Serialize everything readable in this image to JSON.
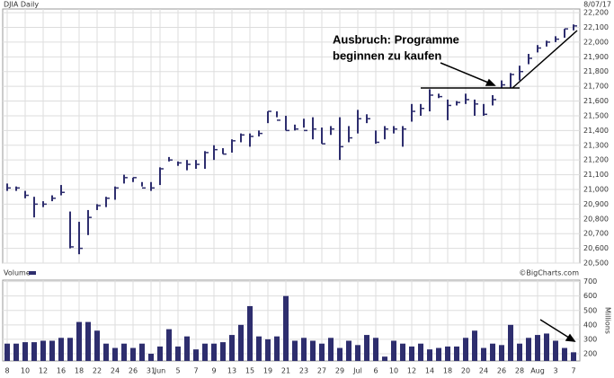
{
  "chart_data": [
    {
      "type": "ohlc",
      "title": "DJIA Daily",
      "date": "8/07/17",
      "annotation": [
        "Ausbruch: Programme",
        "beginnen zu kaufen"
      ],
      "color": "#2e2e6e",
      "grid": true,
      "high": [
        21040,
        21020,
        20990,
        20950,
        20920,
        20960,
        21030,
        20850,
        20780,
        20860,
        20900,
        20950,
        21020,
        21100,
        21080,
        21050,
        21050,
        21150,
        21220,
        21190,
        21200,
        21200,
        21260,
        21300,
        21280,
        21340,
        21380,
        21380,
        21400,
        21530,
        21530,
        21500,
        21440,
        21480,
        21490,
        21420,
        21430,
        21490,
        21430,
        21540,
        21510,
        21400,
        21430,
        21430,
        21430,
        21580,
        21580,
        21680,
        21650,
        21610,
        21600,
        21650,
        21610,
        21580,
        21640,
        21740,
        21790,
        21840,
        21920,
        21980,
        22010,
        22040,
        22090,
        22120
      ],
      "low": [
        20990,
        20990,
        20940,
        20810,
        20880,
        20920,
        20960,
        20600,
        20560,
        20690,
        20860,
        20880,
        20930,
        21040,
        21050,
        21020,
        20990,
        21030,
        21190,
        21160,
        21130,
        21140,
        21140,
        21200,
        21240,
        21250,
        21320,
        21290,
        21360,
        21450,
        21490,
        21400,
        21400,
        21420,
        21340,
        21310,
        21370,
        21200,
        21320,
        21380,
        21450,
        21310,
        21340,
        21380,
        21290,
        21460,
        21500,
        21530,
        21620,
        21470,
        21570,
        21580,
        21500,
        21500,
        21570,
        21690,
        21690,
        21740,
        21850,
        21930,
        21970,
        22000,
        22030,
        22080
      ],
      "close": [
        21010,
        21010,
        20960,
        20900,
        20900,
        20940,
        20980,
        20610,
        20600,
        20810,
        20890,
        20940,
        21010,
        21080,
        21080,
        21010,
        21010,
        21140,
        21200,
        21180,
        21170,
        21170,
        21250,
        21270,
        21240,
        21330,
        21370,
        21360,
        21380,
        21530,
        21470,
        21400,
        21410,
        21400,
        21410,
        21310,
        21410,
        21290,
        21350,
        21480,
        21480,
        21320,
        21410,
        21410,
        21410,
        21530,
        21550,
        21640,
        21630,
        21570,
        21590,
        21610,
        21580,
        21510,
        21610,
        21710,
        21780,
        21800,
        21890,
        21960,
        22000,
        22020,
        22090,
        22110
      ],
      "ylim": [
        20500,
        22225
      ],
      "yticks": [
        {
          "value": 20500,
          "label": "20,500"
        },
        {
          "value": 20600,
          "label": "20,600"
        },
        {
          "value": 20700,
          "label": "20,700"
        },
        {
          "value": 20800,
          "label": "20,800"
        },
        {
          "value": 20900,
          "label": "20,900"
        },
        {
          "value": 21000,
          "label": "21,000"
        },
        {
          "value": 21100,
          "label": "21,100"
        },
        {
          "value": 21200,
          "label": "21,200"
        },
        {
          "value": 21300,
          "label": "21,300"
        },
        {
          "value": 21400,
          "label": "21,400"
        },
        {
          "value": 21500,
          "label": "21,500"
        },
        {
          "value": 21600,
          "label": "21,600"
        },
        {
          "value": 21700,
          "label": "21,700"
        },
        {
          "value": 21800,
          "label": "21,800"
        },
        {
          "value": 21900,
          "label": "21,900"
        },
        {
          "value": 22000,
          "label": "22,000"
        },
        {
          "value": 22100,
          "label": "22,100"
        },
        {
          "value": 22200,
          "label": "22,200"
        }
      ]
    },
    {
      "type": "bar",
      "title": "Volume",
      "source": "©BigCharts.com",
      "y_label": "Millions",
      "color": "#2e2e6e",
      "grid": true,
      "categories": [
        "8",
        null,
        "10",
        null,
        "12",
        null,
        "16",
        null,
        "18",
        null,
        "22",
        null,
        "24",
        null,
        "26",
        null,
        "31",
        "Jun",
        null,
        "5",
        null,
        "7",
        null,
        "9",
        null,
        "13",
        null,
        "15",
        null,
        "19",
        null,
        "21",
        null,
        "23",
        null,
        "27",
        null,
        "29",
        null,
        "Jul",
        null,
        "6",
        null,
        "10",
        null,
        "12",
        null,
        "14",
        null,
        "18",
        null,
        "20",
        null,
        "24",
        null,
        "26",
        null,
        "28",
        null,
        "Aug",
        null,
        "3",
        null,
        "7"
      ],
      "values": [
        270,
        270,
        280,
        280,
        290,
        290,
        310,
        310,
        420,
        420,
        360,
        270,
        240,
        270,
        240,
        270,
        200,
        250,
        370,
        250,
        320,
        230,
        270,
        270,
        280,
        330,
        400,
        530,
        320,
        300,
        320,
        600,
        290,
        310,
        290,
        270,
        310,
        240,
        290,
        260,
        330,
        310,
        180,
        290,
        270,
        250,
        270,
        230,
        240,
        250,
        250,
        310,
        360,
        240,
        270,
        260,
        400,
        270,
        310,
        330,
        340,
        290,
        240,
        210
      ],
      "ylim": [
        150,
        710
      ],
      "yticks": [
        200,
        300,
        400,
        500,
        600,
        700
      ]
    }
  ]
}
